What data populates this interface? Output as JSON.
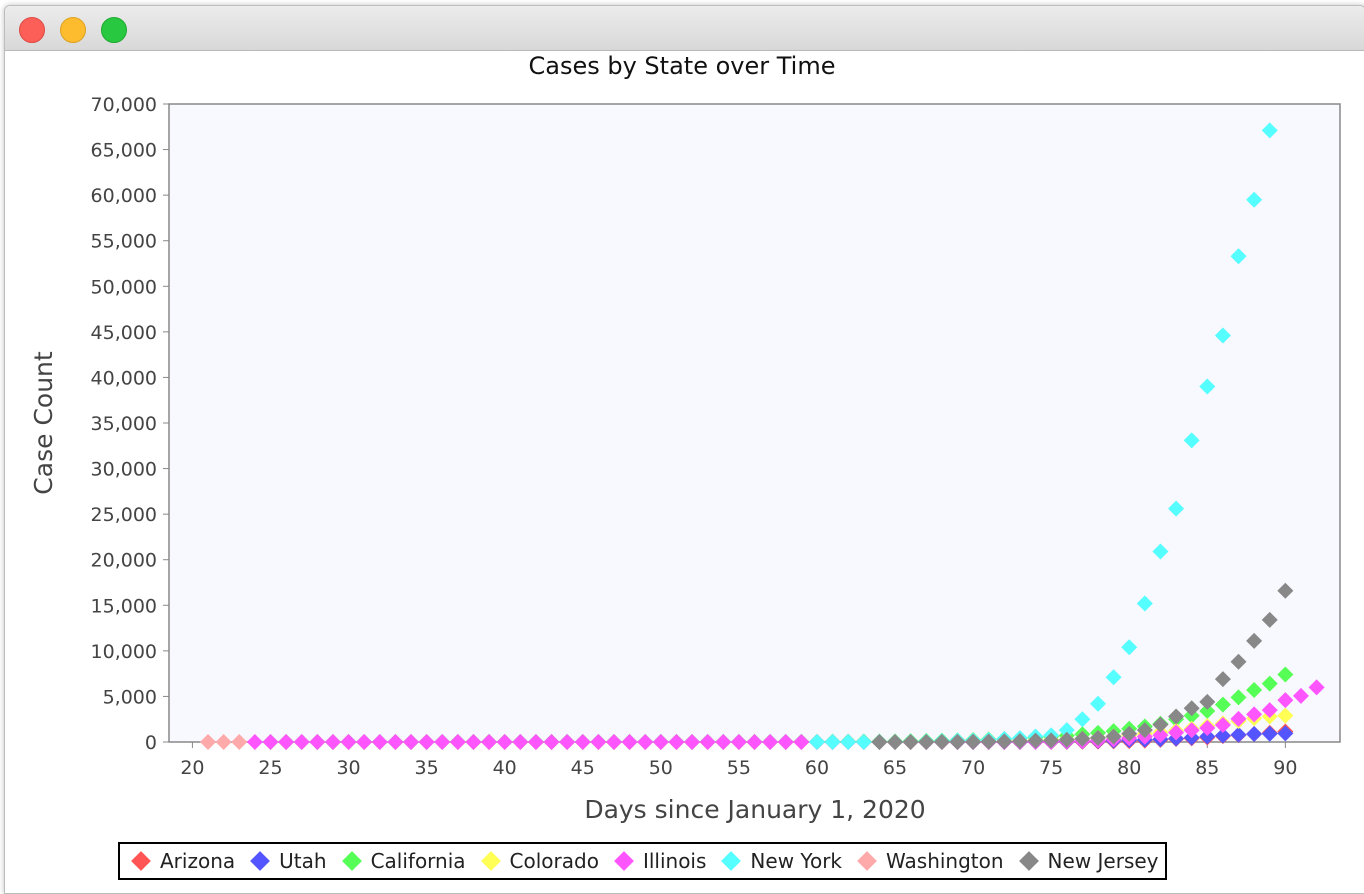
{
  "chart_data": {
    "type": "scatter",
    "title": "Cases by State over Time",
    "xlabel": "Days since January 1, 2020",
    "ylabel": "Case Count",
    "xlim": [
      18.5,
      93.5
    ],
    "ylim": [
      0,
      70000
    ],
    "x_ticks": [
      20,
      25,
      30,
      35,
      40,
      45,
      50,
      55,
      60,
      65,
      70,
      75,
      80,
      85,
      90
    ],
    "y_ticks": [
      0,
      5000,
      10000,
      15000,
      20000,
      25000,
      30000,
      35000,
      40000,
      45000,
      50000,
      55000,
      60000,
      65000,
      70000
    ],
    "y_tick_labels": [
      "0",
      "5,000",
      "10,000",
      "15,000",
      "20,000",
      "25,000",
      "30,000",
      "35,000",
      "40,000",
      "45,000",
      "50,000",
      "55,000",
      "60,000",
      "65,000",
      "70,000"
    ],
    "x_tick_labels": [
      "20",
      "25",
      "30",
      "35",
      "40",
      "45",
      "50",
      "55",
      "60",
      "65",
      "70",
      "75",
      "80",
      "85",
      "90"
    ],
    "legend_position": "bottom",
    "grid": false,
    "series": [
      {
        "name": "Arizona",
        "color": "#ff5555",
        "x_start": 26,
        "values": [
          1,
          1,
          1,
          1,
          1,
          1,
          1,
          1,
          1,
          1,
          1,
          1,
          1,
          1,
          1,
          1,
          1,
          1,
          1,
          1,
          1,
          1,
          1,
          1,
          1,
          1,
          1,
          1,
          1,
          1,
          1,
          1,
          1,
          1,
          1,
          1,
          1,
          1,
          1,
          1,
          1,
          1,
          1,
          1,
          2,
          4,
          5,
          6,
          9,
          12,
          18,
          27,
          45,
          70,
          100,
          150,
          230,
          330,
          400,
          500,
          650,
          750,
          880,
          1000,
          1150
        ]
      },
      {
        "name": "Utah",
        "color": "#5555ff",
        "x_start": 67,
        "values": [
          1,
          2,
          3,
          5,
          8,
          10,
          15,
          25,
          35,
          50,
          80,
          110,
          150,
          200,
          250,
          300,
          390,
          480,
          600,
          700,
          800,
          880,
          900,
          950
        ]
      },
      {
        "name": "California",
        "color": "#55ff55",
        "x_start": 25,
        "values": [
          1,
          2,
          2,
          2,
          3,
          3,
          3,
          3,
          6,
          6,
          6,
          7,
          8,
          8,
          8,
          8,
          8,
          8,
          8,
          8,
          8,
          8,
          9,
          9,
          9,
          9,
          10,
          10,
          10,
          10,
          11,
          14,
          15,
          20,
          25,
          30,
          35,
          45,
          55,
          60,
          70,
          90,
          120,
          150,
          180,
          220,
          280,
          330,
          400,
          480,
          580,
          700,
          850,
          1000,
          1200,
          1450,
          1700,
          2000,
          2500,
          2900,
          3400,
          4100,
          4900,
          5700,
          6400,
          7400
        ]
      },
      {
        "name": "Colorado",
        "color": "#ffff55",
        "x_start": 64,
        "values": [
          2,
          5,
          8,
          12,
          17,
          30,
          45,
          75,
          100,
          130,
          180,
          230,
          280,
          350,
          450,
          600,
          750,
          900,
          1050,
          1250,
          1450,
          1750,
          2050,
          2300,
          2600,
          2800,
          2900
        ]
      },
      {
        "name": "Illinois",
        "color": "#ff55ff",
        "x_start": 24,
        "values": [
          1,
          1,
          1,
          1,
          1,
          1,
          2,
          2,
          2,
          2,
          2,
          2,
          2,
          2,
          2,
          2,
          2,
          2,
          2,
          2,
          2,
          2,
          2,
          2,
          2,
          2,
          2,
          2,
          2,
          2,
          2,
          2,
          2,
          2,
          2,
          2,
          2,
          2,
          2,
          3,
          3,
          3,
          4,
          5,
          7,
          10,
          12,
          19,
          25,
          32,
          46,
          64,
          93,
          105,
          160,
          288,
          422,
          585,
          753,
          1049,
          1285,
          1535,
          1865,
          2538,
          3026,
          3491,
          4596,
          5057,
          5994
        ]
      },
      {
        "name": "New York",
        "color": "#55ffff",
        "x_start": 60,
        "values": [
          1,
          1,
          1,
          2,
          10,
          20,
          30,
          60,
          100,
          150,
          170,
          220,
          330,
          420,
          610,
          730,
          1300,
          2500,
          4200,
          7100,
          10400,
          15200,
          20900,
          25600,
          33100,
          39000,
          44600,
          53300,
          59500,
          67100
        ]
      },
      {
        "name": "Washington",
        "color": "#ffaaaa",
        "x_start": 21,
        "values": [
          1,
          1,
          1
        ]
      },
      {
        "name": "New Jersey",
        "color": "#888888",
        "x_start": 64,
        "values": [
          1,
          2,
          3,
          5,
          10,
          15,
          25,
          40,
          70,
          100,
          150,
          180,
          250,
          350,
          450,
          600,
          900,
          1300,
          1900,
          2800,
          3700,
          4400,
          6900,
          8800,
          11100,
          13400,
          16600
        ]
      }
    ]
  }
}
